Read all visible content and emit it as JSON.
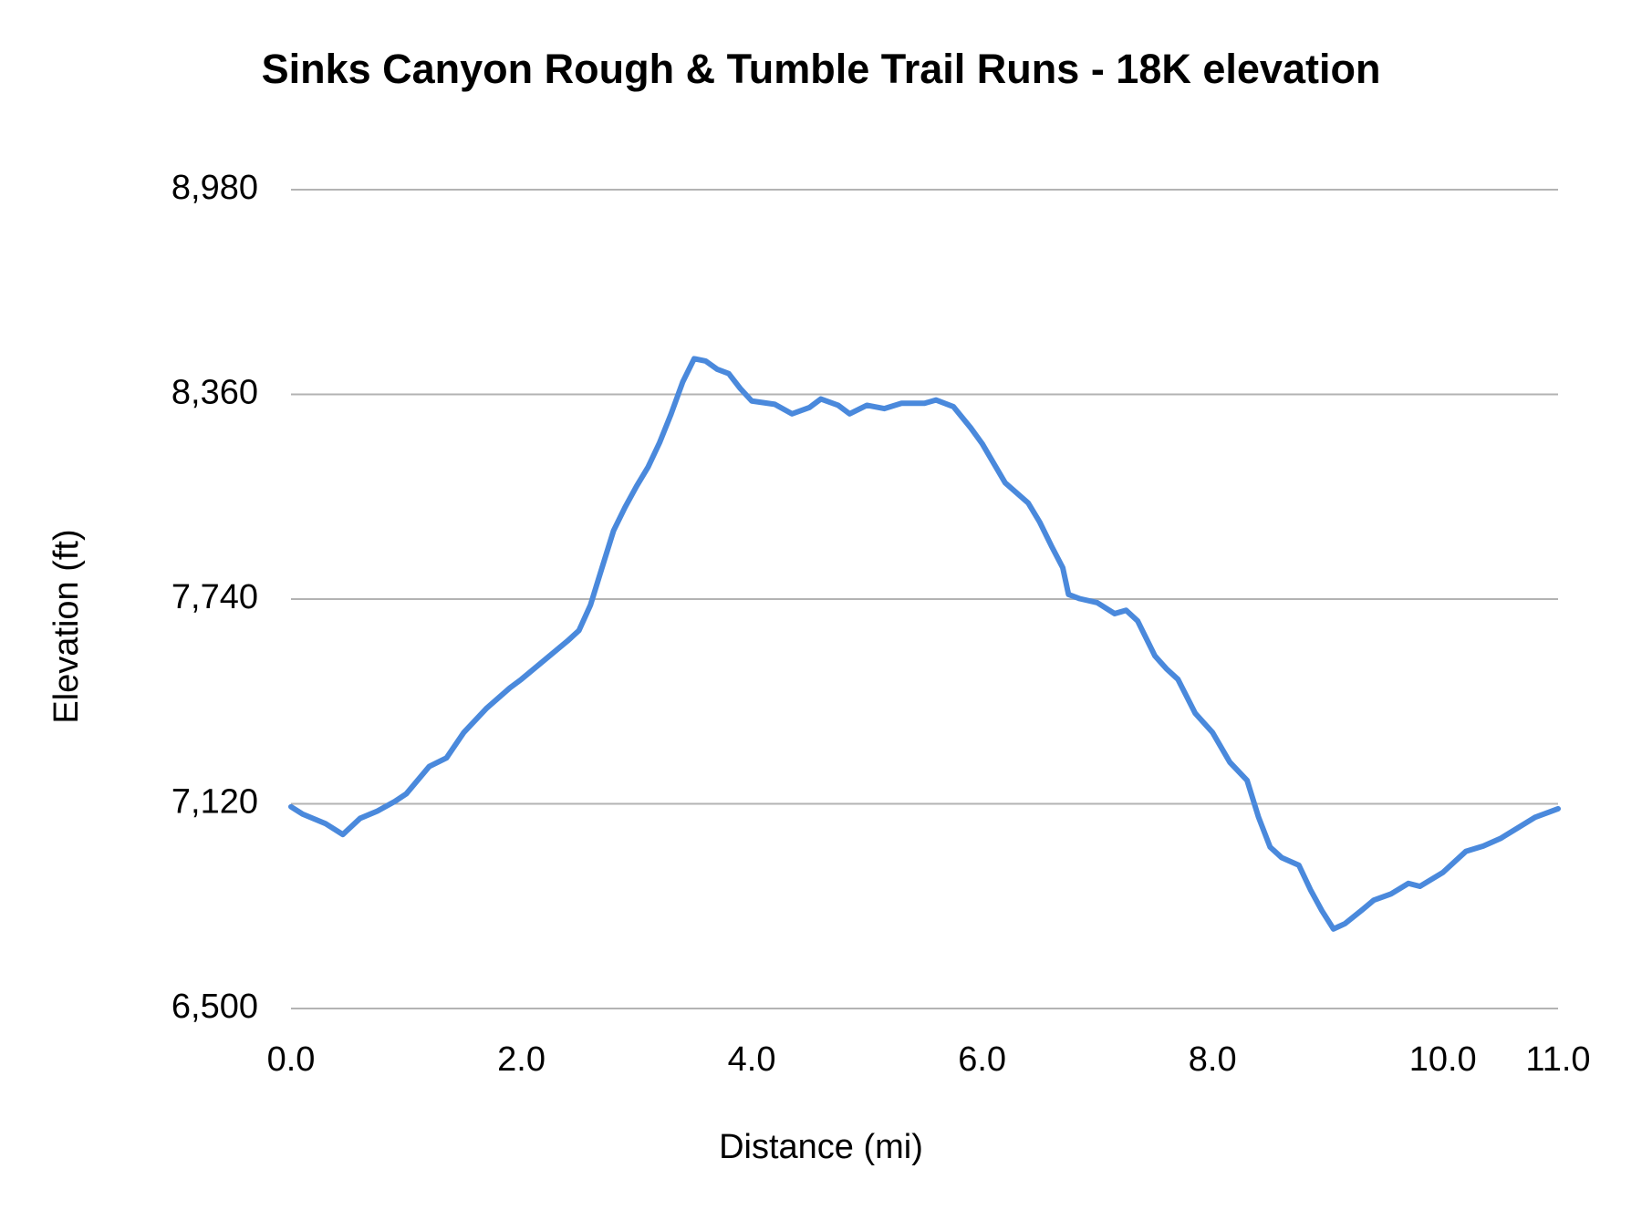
{
  "chart_data": {
    "type": "line",
    "title": "Sinks Canyon Rough & Tumble Trail Runs - 18K elevation",
    "x_label": "Distance (mi)",
    "y_label": "Elevation (ft)",
    "xlim": [
      0,
      11
    ],
    "xticks": [
      {
        "value": 0,
        "label": "0.0"
      },
      {
        "value": 2,
        "label": "2.0"
      },
      {
        "value": 4,
        "label": "4.0"
      },
      {
        "value": 6,
        "label": "6.0"
      },
      {
        "value": 8,
        "label": "8.0"
      },
      {
        "value": 10,
        "label": "10.0"
      },
      {
        "value": 11,
        "label": "11.0"
      }
    ],
    "ylim": [
      6500,
      8980
    ],
    "yticks": [
      {
        "value": 6500,
        "label": "6,500"
      },
      {
        "value": 7120,
        "label": "7,120"
      },
      {
        "value": 7740,
        "label": "7,740"
      },
      {
        "value": 8360,
        "label": "8,360"
      },
      {
        "value": 8980,
        "label": "8,980"
      }
    ],
    "grid": true,
    "x": [
      0,
      0.1,
      0.3,
      0.45,
      0.6,
      0.75,
      0.9,
      1.0,
      1.2,
      1.35,
      1.5,
      1.7,
      1.9,
      2.0,
      2.2,
      2.4,
      2.5,
      2.6,
      2.7,
      2.8,
      2.9,
      3.0,
      3.1,
      3.2,
      3.3,
      3.4,
      3.5,
      3.6,
      3.7,
      3.8,
      3.9,
      4.0,
      4.2,
      4.35,
      4.5,
      4.6,
      4.75,
      4.85,
      5.0,
      5.15,
      5.3,
      5.5,
      5.6,
      5.75,
      5.9,
      6.0,
      6.2,
      6.4,
      6.5,
      6.6,
      6.7,
      6.75,
      6.85,
      7.0,
      7.15,
      7.25,
      7.35,
      7.5,
      7.6,
      7.7,
      7.85,
      8.0,
      8.15,
      8.3,
      8.4,
      8.5,
      8.6,
      8.75,
      8.85,
      8.95,
      9.05,
      9.15,
      9.3,
      9.4,
      9.55,
      9.7,
      9.8,
      10.0,
      10.2,
      10.35,
      10.5,
      10.65,
      10.8,
      11.0
    ],
    "series": [
      {
        "color": "#4a89dc",
        "values": [
          7111,
          7089,
          7060,
          7027,
          7076,
          7098,
          7127,
          7150,
          7233,
          7259,
          7336,
          7410,
          7471,
          7497,
          7555,
          7613,
          7645,
          7722,
          7835,
          7947,
          8018,
          8082,
          8140,
          8214,
          8301,
          8397,
          8468,
          8461,
          8436,
          8423,
          8378,
          8340,
          8330,
          8301,
          8320,
          8346,
          8327,
          8301,
          8327,
          8317,
          8333,
          8333,
          8343,
          8323,
          8259,
          8211,
          8092,
          8031,
          7973,
          7902,
          7835,
          7754,
          7741,
          7729,
          7696,
          7706,
          7674,
          7568,
          7529,
          7497,
          7394,
          7336,
          7246,
          7191,
          7079,
          6989,
          6957,
          6934,
          6860,
          6796,
          6741,
          6757,
          6799,
          6828,
          6847,
          6879,
          6870,
          6912,
          6976,
          6992,
          7015,
          7047,
          7079,
          7105
        ]
      }
    ]
  }
}
